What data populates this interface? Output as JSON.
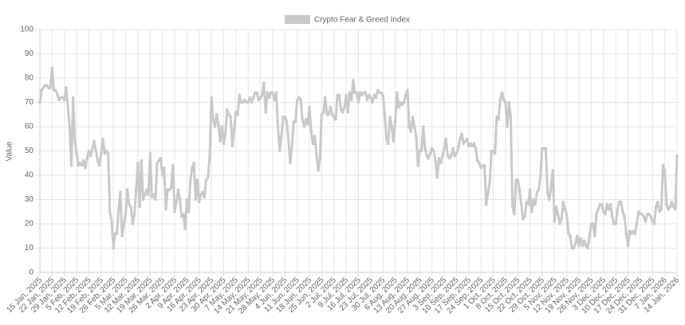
{
  "chart_data": {
    "type": "line",
    "series": [
      {
        "name": "Crypto Fear & Greed Index",
        "color": "#c9c9c9",
        "values": [
          70,
          75,
          76,
          77,
          77,
          76,
          76,
          84,
          75,
          75,
          73,
          71,
          72,
          72,
          71,
          76,
          68,
          60,
          44,
          72,
          54,
          49,
          44,
          45,
          44,
          46,
          43,
          47,
          50,
          48,
          51,
          54,
          50,
          46,
          44,
          49,
          55,
          49,
          50,
          49,
          25,
          21,
          10,
          16,
          16,
          26,
          33,
          15,
          20,
          24,
          34,
          28,
          27,
          20,
          24,
          34,
          45,
          27,
          46,
          30,
          32,
          34,
          32,
          49,
          31,
          32,
          30,
          45,
          46,
          47,
          40,
          43,
          26,
          34,
          34,
          35,
          44,
          25,
          29,
          34,
          30,
          23,
          24,
          18,
          30,
          25,
          38,
          43,
          45,
          30,
          38,
          29,
          32,
          33,
          31,
          38,
          39,
          47,
          72,
          63,
          60,
          65,
          61,
          54,
          60,
          53,
          57,
          67,
          65,
          64,
          52,
          59,
          66,
          65,
          73,
          70,
          70,
          71,
          70,
          70,
          72,
          70,
          72,
          74,
          74,
          71,
          72,
          73,
          78,
          66,
          74,
          72,
          74,
          74,
          71,
          74,
          60,
          50,
          56,
          64,
          64,
          62,
          55,
          45,
          52,
          62,
          62,
          71,
          72,
          71,
          63,
          60,
          63,
          61,
          68,
          58,
          53,
          56,
          49,
          42,
          47,
          65,
          66,
          72,
          65,
          65,
          68,
          65,
          64,
          63,
          73,
          73,
          67,
          66,
          68,
          73,
          66,
          74,
          71,
          79,
          74,
          74,
          70,
          74,
          73,
          74,
          74,
          71,
          73,
          72,
          70,
          73,
          72,
          75,
          74,
          74,
          73,
          65,
          55,
          53,
          64,
          60,
          54,
          62,
          74,
          68,
          70,
          69,
          70,
          73,
          75,
          60,
          58,
          64,
          60,
          56,
          44,
          50,
          50,
          60,
          51,
          48,
          47,
          49,
          51,
          50,
          46,
          39,
          47,
          45,
          48,
          51,
          55,
          48,
          47,
          48,
          51,
          48,
          49,
          51,
          55,
          57,
          53,
          54,
          55,
          52,
          53,
          52,
          53,
          51,
          46,
          45,
          43,
          44,
          44,
          28,
          33,
          37,
          50,
          50,
          49,
          64,
          63,
          71,
          74,
          71,
          70,
          60,
          70,
          64,
          27,
          24,
          38,
          38,
          34,
          28,
          22,
          23,
          29,
          28,
          34,
          25,
          30,
          28,
          33,
          34,
          40,
          51,
          51,
          51,
          33,
          30,
          35,
          42,
          21,
          27,
          24,
          20,
          22,
          29,
          26,
          24,
          16,
          15,
          10,
          10,
          12,
          15,
          11,
          14,
          11,
          13,
          11,
          10,
          15,
          20,
          20,
          15,
          24,
          26,
          28,
          28,
          25,
          24,
          28,
          26,
          28,
          23,
          20,
          20,
          26,
          29,
          29,
          25,
          23,
          16,
          11,
          17,
          16,
          17,
          16,
          20,
          25,
          24,
          24,
          23,
          21,
          24,
          24,
          23,
          21,
          20,
          27,
          29,
          25,
          26,
          44,
          42,
          28,
          26,
          27,
          29,
          27,
          26,
          48
        ]
      }
    ],
    "categories": [
      "15 Jan, 2025",
      null,
      null,
      null,
      null,
      null,
      null,
      "22 Jan, 2025",
      null,
      null,
      null,
      null,
      null,
      null,
      "29 Jan, 2025",
      null,
      null,
      null,
      null,
      null,
      null,
      "5 Feb, 2025",
      null,
      null,
      null,
      null,
      null,
      null,
      "12 Feb, 2025",
      null,
      null,
      null,
      null,
      null,
      null,
      "19 Feb, 2025",
      null,
      null,
      null,
      null,
      null,
      null,
      "26 Feb, 2025",
      null,
      null,
      null,
      null,
      null,
      null,
      "5 Mar, 2025",
      null,
      null,
      null,
      null,
      null,
      null,
      "12 Mar, 2025",
      null,
      null,
      null,
      null,
      null,
      null,
      "19 Mar, 2025",
      null,
      null,
      null,
      null,
      null,
      null,
      "26 Mar, 2025",
      null,
      null,
      null,
      null,
      null,
      null,
      "2 Apr, 2025",
      null,
      null,
      null,
      null,
      null,
      null,
      "9 Apr, 2025",
      null,
      null,
      null,
      null,
      null,
      null,
      "16 Apr, 2025",
      null,
      null,
      null,
      null,
      null,
      null,
      "23 Apr, 2025",
      null,
      null,
      null,
      null,
      null,
      null,
      "30 Apr, 2025",
      null,
      null,
      null,
      null,
      null,
      null,
      "7 May, 2025",
      null,
      null,
      null,
      null,
      null,
      null,
      "14 May, 2025",
      null,
      null,
      null,
      null,
      null,
      null,
      "21 May, 2025",
      null,
      null,
      null,
      null,
      null,
      null,
      "28 May, 2025",
      null,
      null,
      null,
      null,
      null,
      null,
      "4 Jun, 2025",
      null,
      null,
      null,
      null,
      null,
      null,
      "11 Jun, 2025",
      null,
      null,
      null,
      null,
      null,
      null,
      "18 Jun, 2025",
      null,
      null,
      null,
      null,
      null,
      null,
      "25 Jun, 2025",
      null,
      null,
      null,
      null,
      null,
      null,
      "2 Jul, 2025",
      null,
      null,
      null,
      null,
      null,
      null,
      "9 Jul, 2025",
      null,
      null,
      null,
      null,
      null,
      null,
      "16 Jul, 2025",
      null,
      null,
      null,
      null,
      null,
      null,
      "23 Jul, 2025",
      null,
      null,
      null,
      null,
      null,
      null,
      "30 Jul, 2025",
      null,
      null,
      null,
      null,
      null,
      null,
      "6 Aug, 2025",
      null,
      null,
      null,
      null,
      null,
      null,
      "13 Aug, 2025",
      null,
      null,
      null,
      null,
      null,
      null,
      "20 Aug, 2025",
      null,
      null,
      null,
      null,
      null,
      null,
      "27 Aug, 2025",
      null,
      null,
      null,
      null,
      null,
      null,
      "3 Sep, 2025",
      null,
      null,
      null,
      null,
      null,
      null,
      "10 Sep, 2025",
      null,
      null,
      null,
      null,
      null,
      null,
      "17 Sep, 2025",
      null,
      null,
      null,
      null,
      null,
      null,
      "24 Sep, 2025",
      null,
      null,
      null,
      null,
      null,
      null,
      "1 Oct, 2025",
      null,
      null,
      null,
      null,
      null,
      null,
      "8 Oct, 2025",
      null,
      null,
      null,
      null,
      null,
      null,
      "15 Oct, 2025",
      null,
      null,
      null,
      null,
      null,
      null,
      "22 Oct, 2025",
      null,
      null,
      null,
      null,
      null,
      null,
      "29 Oct, 2025",
      null,
      null,
      null,
      null,
      null,
      null,
      "5 Nov, 2025",
      null,
      null,
      null,
      null,
      null,
      null,
      "12 Nov, 2025",
      null,
      null,
      null,
      null,
      null,
      null,
      "19 Nov, 2025",
      null,
      null,
      null,
      null,
      null,
      null,
      "26 Nov, 2025",
      null,
      null,
      null,
      null,
      null,
      null,
      "3 Dec, 2025",
      null,
      null,
      null,
      null,
      null,
      null,
      "10 Dec, 2025",
      null,
      null,
      null,
      null,
      null,
      null,
      "17 Dec, 2025",
      null,
      null,
      null,
      null,
      null,
      null,
      "24 Dec, 2025",
      null,
      null,
      null,
      null,
      null,
      null,
      "31 Dec, 2025",
      null,
      null,
      null,
      null,
      null,
      null,
      "7 Jan, 2026",
      null,
      null,
      null,
      null,
      null,
      null,
      "14 Jan, 2026"
    ],
    "y_label": "Value",
    "ylim": [
      0,
      100
    ],
    "yticks": [
      0,
      10,
      20,
      30,
      40,
      50,
      60,
      70,
      80,
      90,
      100
    ],
    "grid": true,
    "legend": "top"
  }
}
